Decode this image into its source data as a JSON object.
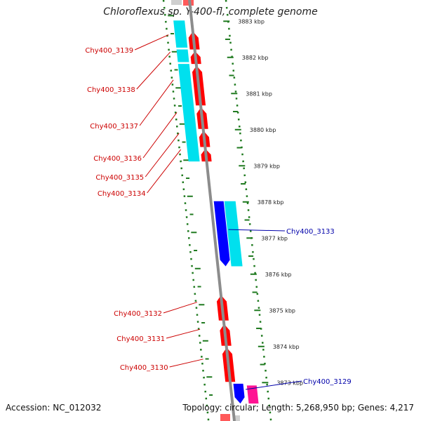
{
  "title": "Chloroflexus sp. Y-400-fl, complete genome",
  "accession": "Accession: NC_012032",
  "topology": "Topology: circular; Length: 5,268,950 bp; Genes: 4,217",
  "colors": {
    "backbone": "#8c8c8c",
    "tick": "#1f7a1f",
    "outline": "#1f7a1f",
    "forward_cds": "#ff0000",
    "reverse_cds": "#0000ff",
    "rna": "#00e0ee",
    "pink_feature": "#ff1493",
    "label_forward": "#cc0000",
    "label_reverse": "#0000aa"
  },
  "ruler": {
    "labels": [
      "3883 kbp",
      "3882 kbp",
      "3881 kbp",
      "3880 kbp",
      "3879 kbp",
      "3878 kbp",
      "3877 kbp",
      "3876 kbp",
      "3875 kbp",
      "3874 kbp",
      "3873 kbp"
    ]
  },
  "genes": [
    {
      "name": "Chy400_3139",
      "strand": "forward",
      "start_kbp": 3882.7,
      "end_kbp": 3882.2
    },
    {
      "name": "Chy400_3138",
      "strand": "forward",
      "start_kbp": 3882.15,
      "end_kbp": 3881.8
    },
    {
      "name": "Chy400_3137",
      "strand": "forward",
      "start_kbp": 3881.75,
      "end_kbp": 3880.65
    },
    {
      "name": "Chy400_3136",
      "strand": "forward",
      "start_kbp": 3880.6,
      "end_kbp": 3880.0
    },
    {
      "name": "Chy400_3135",
      "strand": "forward",
      "start_kbp": 3879.95,
      "end_kbp": 3879.5
    },
    {
      "name": "Chy400_3134",
      "strand": "forward",
      "start_kbp": 3879.45,
      "end_kbp": 3879.1
    },
    {
      "name": "Chy400_3133",
      "strand": "reverse",
      "start_kbp": 3878.0,
      "end_kbp": 3876.2
    },
    {
      "name": "Chy400_3132",
      "strand": "forward",
      "start_kbp": 3875.4,
      "end_kbp": 3874.7
    },
    {
      "name": "Chy400_3131",
      "strand": "forward",
      "start_kbp": 3874.6,
      "end_kbp": 3874.0
    },
    {
      "name": "Chy400_3130",
      "strand": "forward",
      "start_kbp": 3873.95,
      "end_kbp": 3873.0
    },
    {
      "name": "Chy400_3129",
      "strand": "reverse",
      "start_kbp": 3872.95,
      "end_kbp": 3872.4
    }
  ],
  "rna_features": [
    {
      "start_kbp": 3883.0,
      "end_kbp": 3882.25
    },
    {
      "start_kbp": 3882.2,
      "end_kbp": 3881.85
    },
    {
      "start_kbp": 3881.8,
      "end_kbp": 3879.1
    },
    {
      "start_kbp": 3878.0,
      "end_kbp": 3876.2
    }
  ],
  "pink_features": [
    {
      "start_kbp": 3872.9,
      "end_kbp": 3872.4
    }
  ]
}
